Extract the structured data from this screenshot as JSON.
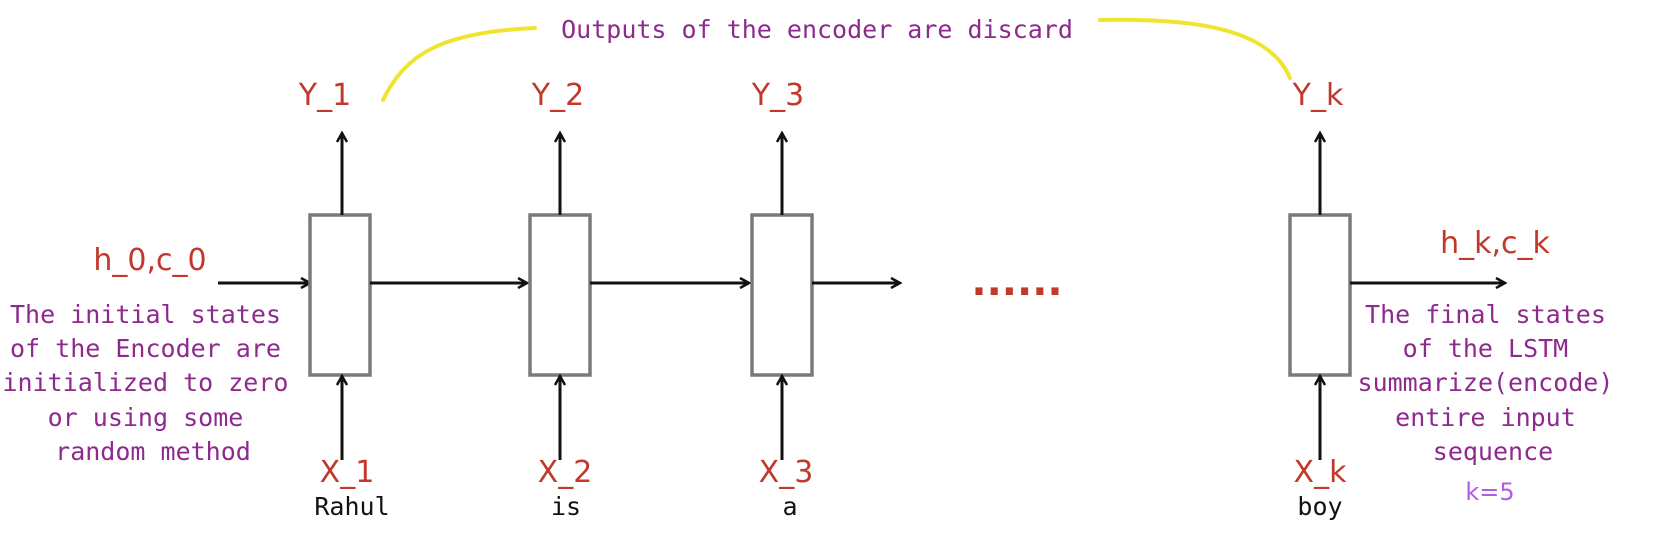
{
  "header_note": "Outputs of the encoder are discard",
  "cells": [
    {
      "output": "Y_1",
      "input": "X_1",
      "word": "Rahul"
    },
    {
      "output": "Y_2",
      "input": "X_2",
      "word": "is"
    },
    {
      "output": "Y_3",
      "input": "X_3",
      "word": "a"
    },
    {
      "output": "Y_k",
      "input": "X_k",
      "word": "boy"
    }
  ],
  "initial_state": {
    "label": "h_0,c_0",
    "note_lines": [
      "The initial states",
      "of the Encoder are",
      "initialized to zero",
      "or using some",
      "random method"
    ]
  },
  "final_state": {
    "label": "h_k,c_k",
    "note_lines": [
      "The final states",
      "of the LSTM",
      "summarize(encode)",
      "entire input",
      "sequence"
    ],
    "k_value": "k=5"
  },
  "ellipsis": "......",
  "colors": {
    "label_red": "#c0392b",
    "note_purple": "#8e2a8e",
    "k_violet": "#b15ce8",
    "curve_yellow": "#f0e430",
    "cell_border": "#7a7a7a"
  }
}
